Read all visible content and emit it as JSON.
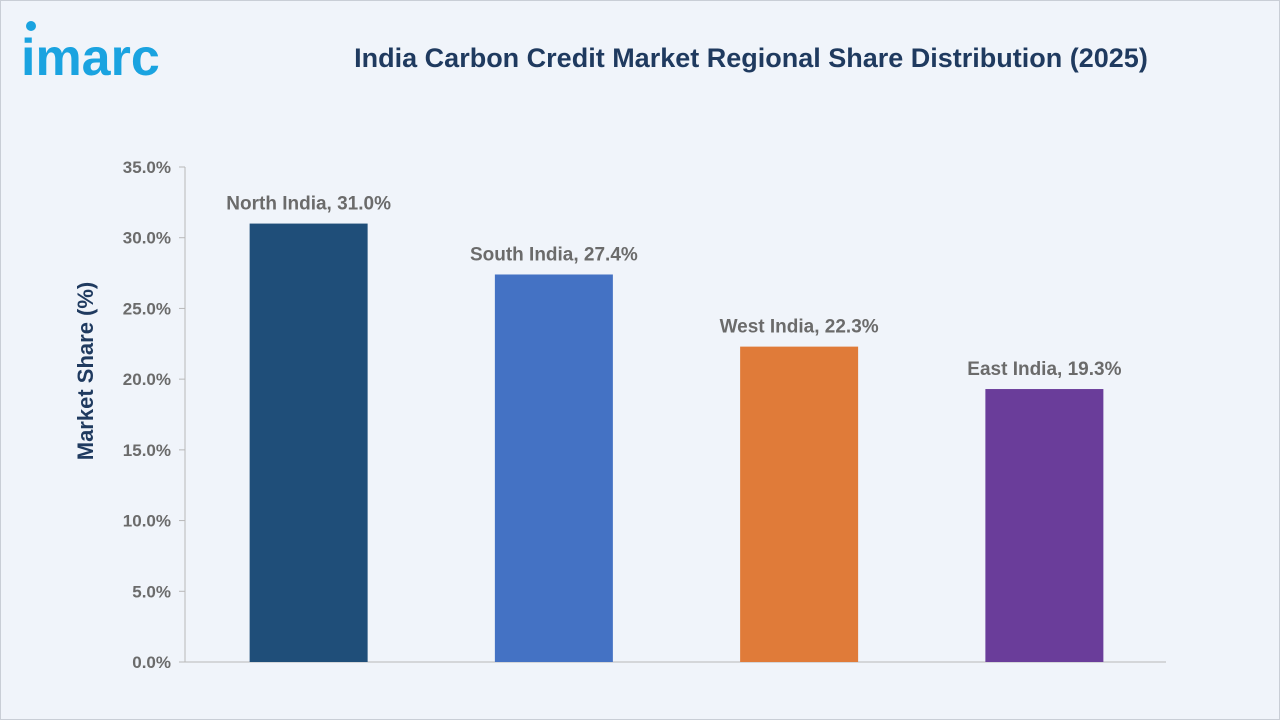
{
  "brand": {
    "logo_text": "imarc",
    "logo_color": "#1aa3e0"
  },
  "chart_data": {
    "type": "bar",
    "title": "India Carbon Credit Market Regional Share Distribution (2025)",
    "xlabel": "",
    "ylabel": "Market Share (%)",
    "ylim": [
      0,
      35
    ],
    "yticks": [
      "0.0%",
      "5.0%",
      "10.0%",
      "15.0%",
      "20.0%",
      "25.0%",
      "30.0%",
      "35.0%"
    ],
    "categories": [
      "North India",
      "South India",
      "West India",
      "East India"
    ],
    "values": [
      31.0,
      27.4,
      22.3,
      19.3
    ],
    "data_labels": [
      "North India, 31.0%",
      "South India, 27.4%",
      "West India, 22.3%",
      "East India, 19.3%"
    ],
    "colors": [
      "#1f4e79",
      "#4472c4",
      "#e07b39",
      "#6a3d9a"
    ],
    "grid": false,
    "legend": "none"
  }
}
